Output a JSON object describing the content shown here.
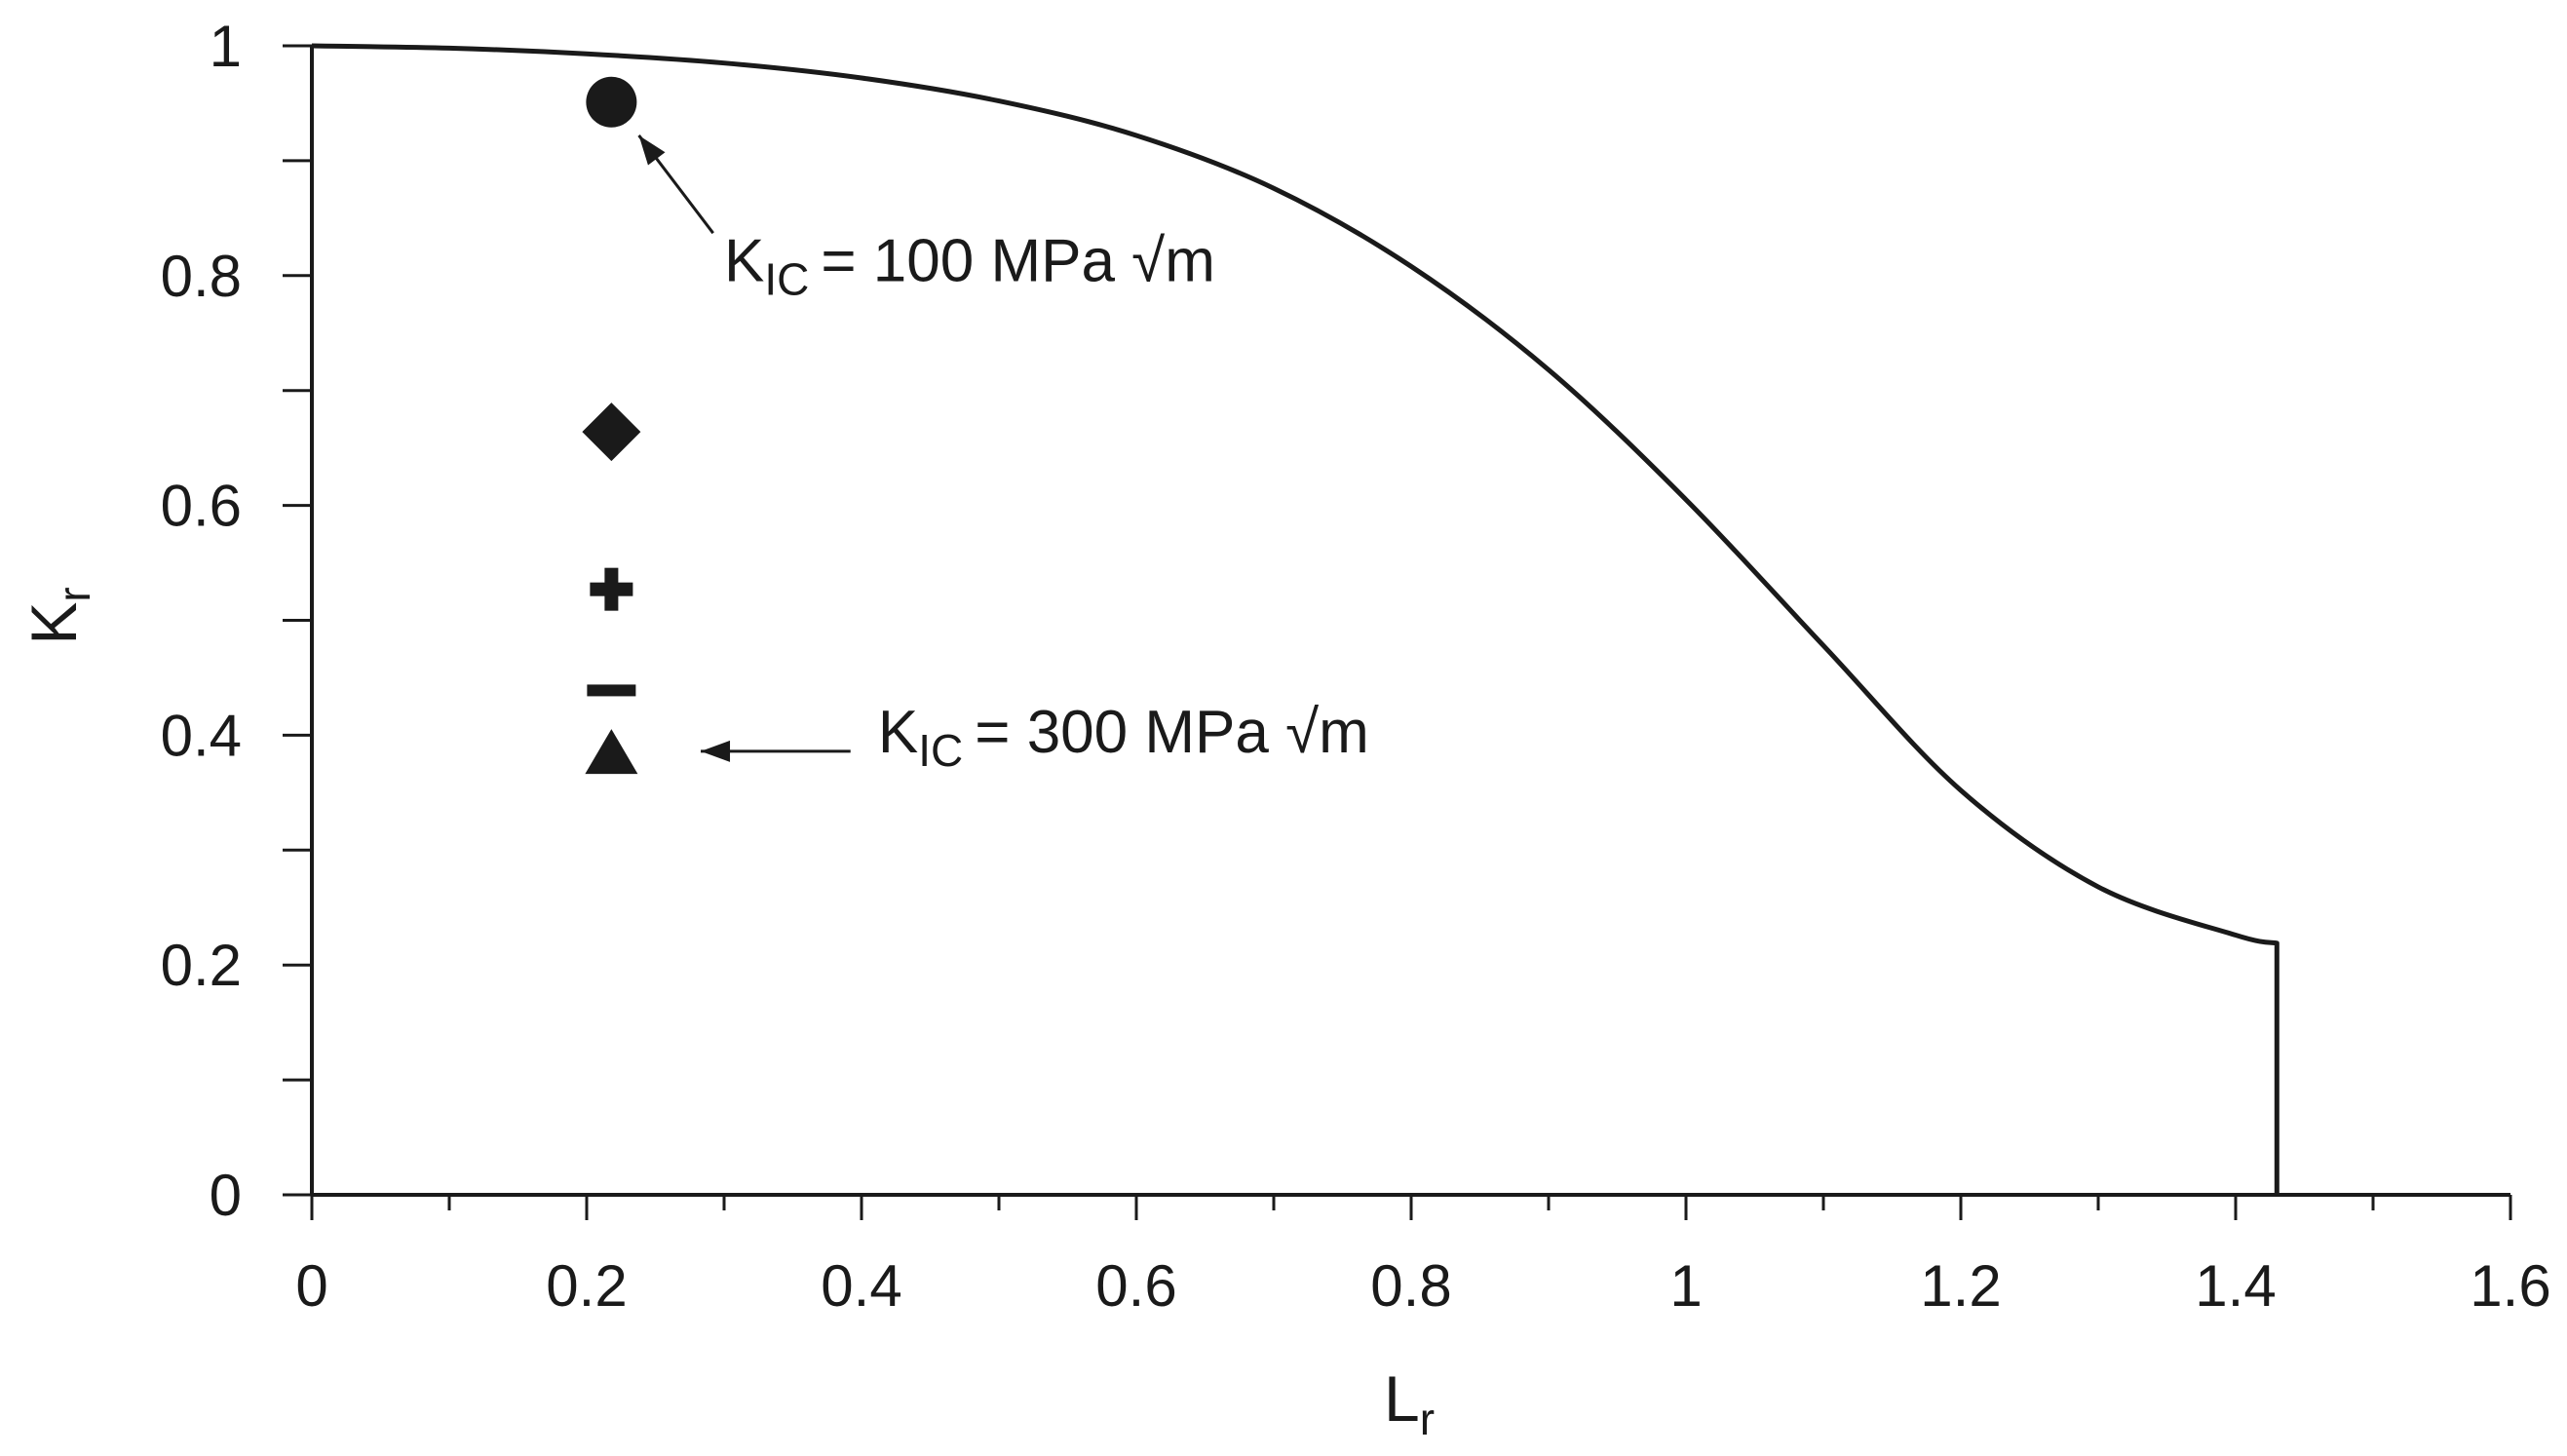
{
  "chart_data": {
    "type": "line",
    "title": "",
    "xlabel": {
      "base": "L",
      "sub": "r"
    },
    "ylabel": {
      "base": "K",
      "sub": "r"
    },
    "xlim": [
      0,
      1.6
    ],
    "ylim": [
      0,
      1
    ],
    "grid": false,
    "xticks": [
      {
        "value": 0,
        "label": "0"
      },
      {
        "value": 0.2,
        "label": "0.2"
      },
      {
        "value": 0.4,
        "label": "0.4"
      },
      {
        "value": 0.6,
        "label": "0.6"
      },
      {
        "value": 0.8,
        "label": "0.8"
      },
      {
        "value": 1,
        "label": "1"
      },
      {
        "value": 1.2,
        "label": "1.2"
      },
      {
        "value": 1.4,
        "label": "1.4"
      },
      {
        "value": 1.6,
        "label": "1.6"
      }
    ],
    "yticks": [
      {
        "value": 0,
        "label": "0"
      },
      {
        "value": 0.2,
        "label": "0.2"
      },
      {
        "value": 0.4,
        "label": "0.4"
      },
      {
        "value": 0.6,
        "label": "0.6"
      },
      {
        "value": 0.8,
        "label": "0.8"
      },
      {
        "value": 1,
        "label": "1"
      }
    ],
    "x_minor_step": 0.1,
    "y_minor_step": 0.1,
    "series": [
      {
        "name": "failure-assessment-curve",
        "x": [
          0,
          0.1,
          0.2,
          0.3,
          0.4,
          0.5,
          0.6,
          0.7,
          0.8,
          0.9,
          1.0,
          1.1,
          1.2,
          1.3,
          1.4,
          1.43,
          1.43
        ],
        "y": [
          1.0,
          0.998,
          0.993,
          0.985,
          0.972,
          0.952,
          0.922,
          0.876,
          0.808,
          0.718,
          0.605,
          0.478,
          0.352,
          0.268,
          0.226,
          0.219,
          0
        ]
      }
    ],
    "points": [
      {
        "name": "point-circle",
        "marker": "circle",
        "x": 0.218,
        "y": 0.951
      },
      {
        "name": "point-diamond",
        "marker": "diamond",
        "x": 0.218,
        "y": 0.664
      },
      {
        "name": "point-plus",
        "marker": "plus",
        "x": 0.218,
        "y": 0.527
      },
      {
        "name": "point-dash",
        "marker": "dash",
        "x": 0.218,
        "y": 0.439
      },
      {
        "name": "point-triangle",
        "marker": "triangle",
        "x": 0.218,
        "y": 0.385
      }
    ],
    "annotations": [
      {
        "name": "annotation-kic-100",
        "k": "K",
        "sub": "IC",
        "value": "= 100 MPa √m",
        "text_at": [
          0.3,
          0.795
        ],
        "arrow_from": [
          0.292,
          0.837
        ],
        "arrow_to": [
          0.238,
          0.922
        ]
      },
      {
        "name": "annotation-kic-300",
        "k": "K",
        "sub": "IC",
        "value": "= 300 MPa √m",
        "text_at": [
          0.412,
          0.385
        ],
        "arrow_from": [
          0.392,
          0.386
        ],
        "arrow_to": [
          0.283,
          0.386
        ]
      }
    ],
    "line_color": "#1a1a1a",
    "marker_color": "#1a1a1a"
  }
}
